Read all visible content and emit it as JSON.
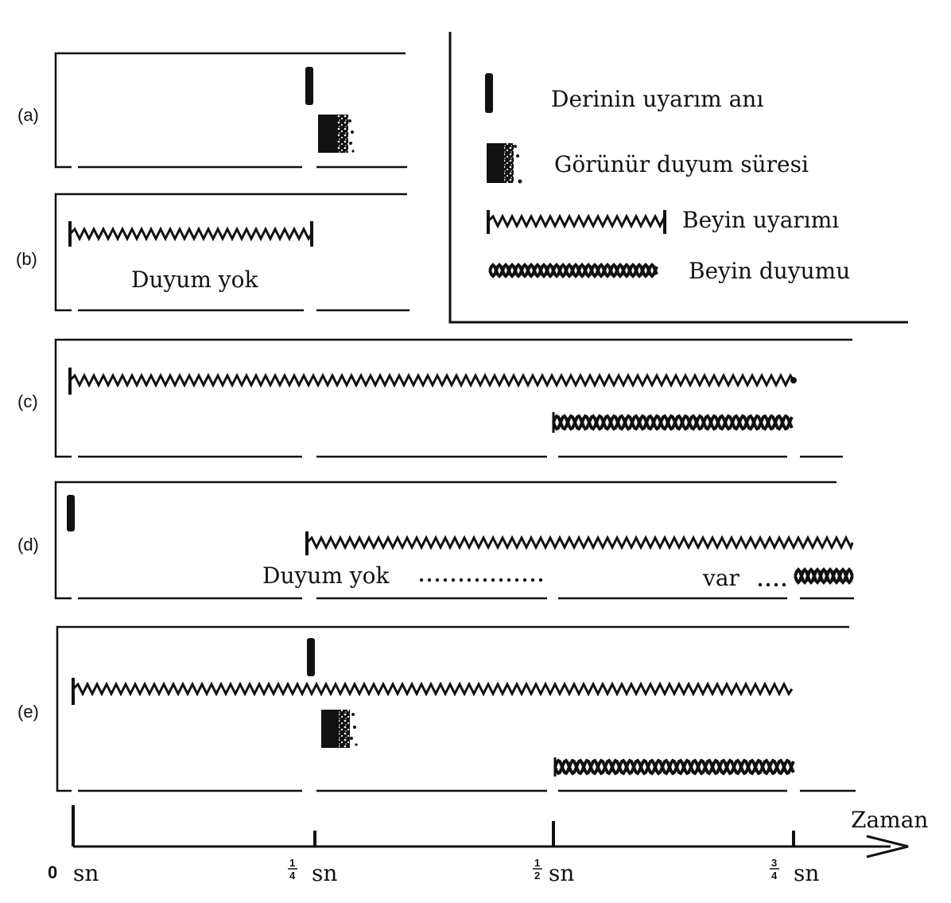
{
  "panels": [
    {
      "id": "a",
      "label": "(a)"
    },
    {
      "id": "b",
      "label": "(b)",
      "text": "Duyum yok"
    },
    {
      "id": "c",
      "label": "(c)"
    },
    {
      "id": "d",
      "label": "(d)",
      "text_no": "Duyum yok",
      "text_yes": "var"
    },
    {
      "id": "e",
      "label": "(e)"
    }
  ],
  "legend": {
    "skin_stimulus": "Derinin uyarım anı",
    "apparent_sensation": "Görünür duyum süresi",
    "brain_stimulation": "Beyin uyarımı",
    "brain_sensation": "Beyin duyumu"
  },
  "axis": {
    "title": "Zaman",
    "unit": "sn",
    "ticks": [
      {
        "whole": "0",
        "num": "",
        "den": ""
      },
      {
        "whole": "",
        "num": "1",
        "den": "4"
      },
      {
        "whole": "",
        "num": "1",
        "den": "2"
      },
      {
        "whole": "",
        "num": "3",
        "den": "4"
      }
    ]
  },
  "colors": {
    "ink": "#111111",
    "paper": "#ffffff"
  }
}
